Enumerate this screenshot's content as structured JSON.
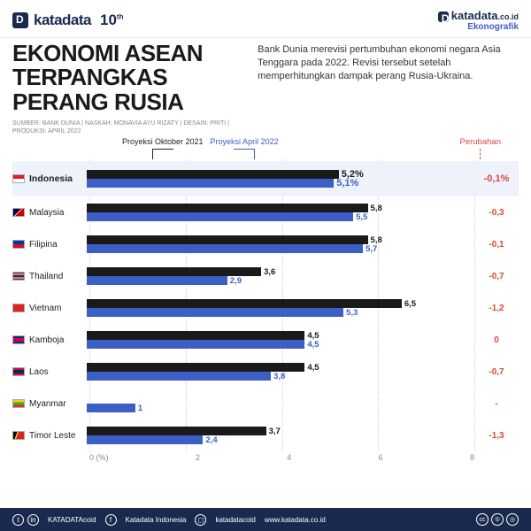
{
  "brand": {
    "name": "katadata",
    "anniversary": "10",
    "sup": "th",
    "site": "katadata.co.id",
    "category": "Ekonografik"
  },
  "title": "EKONOMI ASEAN TERPANGKAS PERANG RUSIA",
  "credits": "SUMBER: BANK DUNIA | NASKAH: MONAVIA AYU RIZATY | DESAIN: PRITI | PRODUKSI: APRIL 2022",
  "description": "Bank Dunia merevisi pertumbuhan ekonomi negara Asia Tenggara pada 2022. Revisi tersebut setelah memperhitungkan dampak perang Rusia-Ukraina.",
  "legend": {
    "series1": "Proyeksi Oktober 2021",
    "series2": "Proyeksi April 2022",
    "change": "Perubahan"
  },
  "chart": {
    "type": "grouped-horizontal-bar",
    "xmax": 8,
    "xticks": [
      "0 (%)",
      "2",
      "4",
      "6",
      "8"
    ],
    "colors": {
      "series1": "#1a1a1a",
      "series2": "#3b5fc4",
      "change": "#d94a3a",
      "highlight_bg": "#eef2fb",
      "grid": "#d0d0d0"
    },
    "rows": [
      {
        "country": "Indonesia",
        "flag": "linear-gradient(to bottom,#e31b23 50%,#ffffff 50%)",
        "v1": 5.2,
        "v2": 5.1,
        "label1": "5,2%",
        "label2": "5,1%",
        "change": "-0,1%",
        "highlight": true
      },
      {
        "country": "Malaysia",
        "flag": "linear-gradient(135deg,#010066 40%,#cc0001 40%,#cc0001 45%,#fff 45%,#fff 50%,#cc0001 50%)",
        "v1": 5.8,
        "v2": 5.5,
        "label1": "5,8",
        "label2": "5,5",
        "change": "-0,3"
      },
      {
        "country": "Filipina",
        "flag": "linear-gradient(to bottom,#0038a8 50%,#ce1126 50%)",
        "v1": 5.8,
        "v2": 5.7,
        "label1": "5,8",
        "label2": "5,7",
        "change": "-0,1"
      },
      {
        "country": "Thailand",
        "flag": "linear-gradient(to bottom,#a51931 17%,#f4f5f8 17%,#f4f5f8 33%,#2d2a4a 33%,#2d2a4a 67%,#f4f5f8 67%,#f4f5f8 83%,#a51931 83%)",
        "v1": 3.6,
        "v2": 2.9,
        "label1": "3,6",
        "label2": "2,9",
        "change": "-0,7"
      },
      {
        "country": "Vietnam",
        "flag": "#da251d",
        "v1": 6.5,
        "v2": 5.3,
        "label1": "6,5",
        "label2": "5,3",
        "change": "-1,2"
      },
      {
        "country": "Kamboja",
        "flag": "linear-gradient(to bottom,#032ea1 25%,#e00025 25%,#e00025 75%,#032ea1 75%)",
        "v1": 4.5,
        "v2": 4.5,
        "label1": "4,5",
        "label2": "4,5",
        "change": "0"
      },
      {
        "country": "Laos",
        "flag": "linear-gradient(to bottom,#ce1126 25%,#002868 25%,#002868 75%,#ce1126 75%)",
        "v1": 4.5,
        "v2": 3.8,
        "label1": "4,5",
        "label2": "3,8",
        "change": "-0,7"
      },
      {
        "country": "Myanmar",
        "flag": "linear-gradient(to bottom,#fecb00 33%,#34b233 33%,#34b233 67%,#ea2839 67%)",
        "v1": null,
        "v2": 1.0,
        "label1": "",
        "label2": "1",
        "change": "-"
      },
      {
        "country": "Timor Leste",
        "flag": "linear-gradient(110deg,#000 30%,#ffc726 30%,#ffc726 40%,#dc241f 40%)",
        "v1": 3.7,
        "v2": 2.4,
        "label1": "3,7",
        "label2": "2,4",
        "change": "-1,3"
      }
    ]
  },
  "footer": {
    "handle": "KATADATAcoid",
    "fb": "Katadata Indonesia",
    "ig": "katadatacoid",
    "web": "www.katadata.co.id",
    "cc": [
      "cc",
      "①",
      "◎"
    ]
  }
}
